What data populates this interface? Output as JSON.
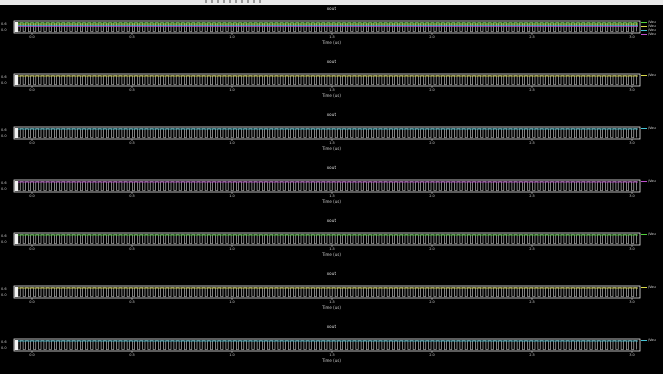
{
  "window": {
    "topbar_color": "#e9e9e9",
    "background": "#000000"
  },
  "chart_data": [
    {
      "type": "line",
      "title": "xout",
      "xlabel": "Time (us)",
      "xticks": [
        "0.0",
        "0.5",
        "1.0",
        "1.5",
        "2.0",
        "2.5",
        "3.0"
      ],
      "yticks": [
        "0.6",
        "0.0"
      ],
      "xlim": [
        0,
        3
      ],
      "series": [
        {
          "name": "/Vou",
          "color": "#4fd13a"
        },
        {
          "name": "/Vou",
          "color": "#d8d84a"
        },
        {
          "name": "/Vou",
          "color": "#47c6d6"
        },
        {
          "name": "/Vou",
          "color": "#c050d0"
        }
      ]
    },
    {
      "type": "line",
      "title": "xout",
      "xlabel": "Time (us)",
      "xticks": [
        "0.0",
        "0.5",
        "1.0",
        "1.5",
        "2.0",
        "2.5",
        "3.0"
      ],
      "yticks": [
        "0.6",
        "0.0"
      ],
      "xlim": [
        0,
        3
      ],
      "series": [
        {
          "name": "/Vou",
          "color": "#d8d84a"
        }
      ]
    },
    {
      "type": "line",
      "title": "xout",
      "xlabel": "Time (us)",
      "xticks": [
        "0.0",
        "0.5",
        "1.0",
        "1.5",
        "2.0",
        "2.5",
        "3.0"
      ],
      "yticks": [
        "0.6",
        "0.0"
      ],
      "xlim": [
        0,
        3
      ],
      "series": [
        {
          "name": "/Vou",
          "color": "#47c6d6"
        }
      ]
    },
    {
      "type": "line",
      "title": "xout",
      "xlabel": "Time (us)",
      "xticks": [
        "0.0",
        "0.5",
        "1.0",
        "1.5",
        "2.0",
        "2.5",
        "3.0"
      ],
      "yticks": [
        "0.6",
        "0.0"
      ],
      "xlim": [
        0,
        3
      ],
      "series": [
        {
          "name": "/Vou",
          "color": "#c050d0"
        }
      ]
    },
    {
      "type": "line",
      "title": "xout",
      "xlabel": "Time (us)",
      "xticks": [
        "0.0",
        "0.5",
        "1.0",
        "1.5",
        "2.0",
        "2.5",
        "3.0"
      ],
      "yticks": [
        "0.6",
        "0.0"
      ],
      "xlim": [
        0,
        3
      ],
      "series": [
        {
          "name": "/Vou",
          "color": "#4fd13a"
        }
      ]
    },
    {
      "type": "line",
      "title": "xout",
      "xlabel": "Time (us)",
      "xticks": [
        "0.0",
        "0.5",
        "1.0",
        "1.5",
        "2.0",
        "2.5",
        "3.0"
      ],
      "yticks": [
        "0.6",
        "0.0"
      ],
      "xlim": [
        0,
        3
      ],
      "series": [
        {
          "name": "/Vou",
          "color": "#d8d84a"
        }
      ]
    },
    {
      "type": "line",
      "title": "xout",
      "xlabel": "Time (us)",
      "xticks": [
        "0.0",
        "0.5",
        "1.0",
        "1.5",
        "2.0",
        "2.5",
        "3.0"
      ],
      "yticks": [
        "0.6",
        "0.0"
      ],
      "xlim": [
        0,
        3
      ],
      "series": [
        {
          "name": "/Vou",
          "color": "#47c6d6"
        }
      ]
    }
  ]
}
